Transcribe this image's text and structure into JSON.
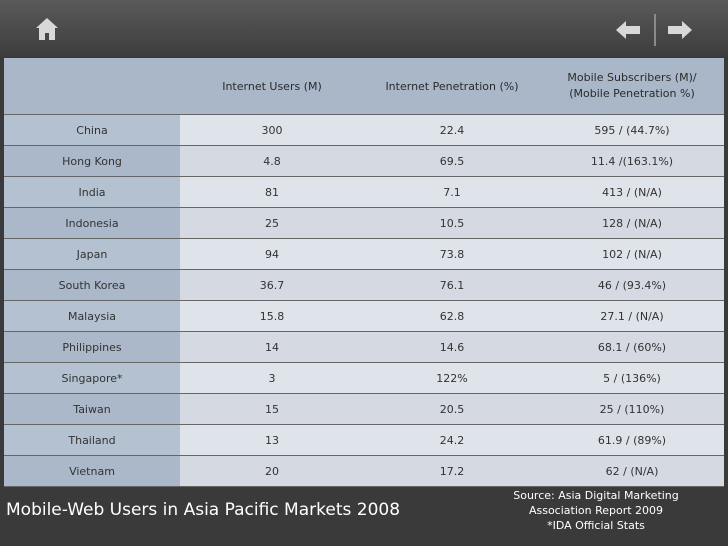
{
  "toolbar": {
    "home_icon": "home-icon",
    "back_icon": "arrow-left-icon",
    "forward_icon": "arrow-right-icon"
  },
  "table": {
    "headers": [
      "",
      "Internet Users (M)",
      "Internet Penetration (%)",
      "Mobile Subscribers (M)/",
      "(Mobile Penetration %)"
    ],
    "rows": [
      [
        "China",
        "300",
        "22.4",
        "595 / (44.7%)"
      ],
      [
        "Hong Kong",
        "4.8",
        "69.5",
        "11.4 /(163.1%)"
      ],
      [
        "India",
        "81",
        "7.1",
        "413 / (N/A)"
      ],
      [
        "Indonesia",
        "25",
        "10.5",
        "128 / (N/A)"
      ],
      [
        "Japan",
        "94",
        "73.8",
        "102 / (N/A)"
      ],
      [
        "South Korea",
        "36.7",
        "76.1",
        "46 / (93.4%)"
      ],
      [
        "Malaysia",
        "15.8",
        "62.8",
        "27.1 / (N/A)"
      ],
      [
        "Philippines",
        "14",
        "14.6",
        "68.1 / (60%)"
      ],
      [
        "Singapore*",
        "3",
        "122%",
        "5 / (136%)"
      ],
      [
        "Taiwan",
        "15",
        "20.5",
        "25 / (110%)"
      ],
      [
        "Thailand",
        "13",
        "24.2",
        "61.9 / (89%)"
      ],
      [
        "Vietnam",
        "20",
        "17.2",
        "62 / (N/A)"
      ]
    ]
  },
  "caption": "Mobile-Web Users in Asia Pacific Markets 2008",
  "source": {
    "line1": "Source: Asia Digital Marketing",
    "line2": "Association Report 2009",
    "line3": "*IDA Official Stats"
  }
}
